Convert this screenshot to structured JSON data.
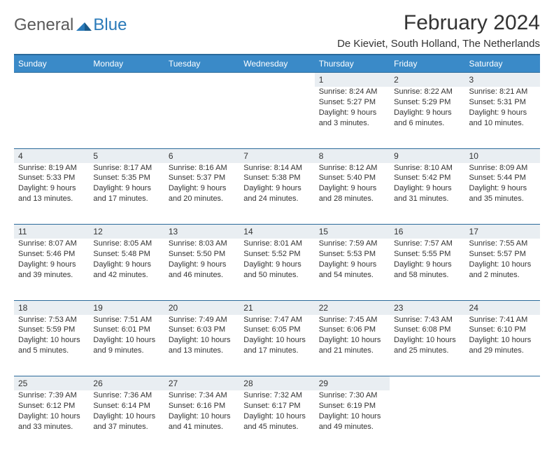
{
  "logo": {
    "part1": "General",
    "part2": "Blue"
  },
  "title": "February 2024",
  "location": "De Kieviet, South Holland, The Netherlands",
  "colors": {
    "header_bg": "#3a8ac8",
    "header_border": "#2a6a9a",
    "daynum_bg": "#e9eef2",
    "text": "#333333",
    "logo_gray": "#5a5a5a",
    "logo_blue": "#2a7ab9",
    "page_bg": "#ffffff"
  },
  "typography": {
    "title_fontsize": 30,
    "location_fontsize": 15,
    "dayheader_fontsize": 12,
    "daynum_fontsize": 12,
    "cell_fontsize": 11,
    "font_family": "Arial"
  },
  "day_headers": [
    "Sunday",
    "Monday",
    "Tuesday",
    "Wednesday",
    "Thursday",
    "Friday",
    "Saturday"
  ],
  "weeks": [
    [
      null,
      null,
      null,
      null,
      {
        "n": "1",
        "sr": "Sunrise: 8:24 AM",
        "ss": "Sunset: 5:27 PM",
        "dl1": "Daylight: 9 hours",
        "dl2": "and 3 minutes."
      },
      {
        "n": "2",
        "sr": "Sunrise: 8:22 AM",
        "ss": "Sunset: 5:29 PM",
        "dl1": "Daylight: 9 hours",
        "dl2": "and 6 minutes."
      },
      {
        "n": "3",
        "sr": "Sunrise: 8:21 AM",
        "ss": "Sunset: 5:31 PM",
        "dl1": "Daylight: 9 hours",
        "dl2": "and 10 minutes."
      }
    ],
    [
      {
        "n": "4",
        "sr": "Sunrise: 8:19 AM",
        "ss": "Sunset: 5:33 PM",
        "dl1": "Daylight: 9 hours",
        "dl2": "and 13 minutes."
      },
      {
        "n": "5",
        "sr": "Sunrise: 8:17 AM",
        "ss": "Sunset: 5:35 PM",
        "dl1": "Daylight: 9 hours",
        "dl2": "and 17 minutes."
      },
      {
        "n": "6",
        "sr": "Sunrise: 8:16 AM",
        "ss": "Sunset: 5:37 PM",
        "dl1": "Daylight: 9 hours",
        "dl2": "and 20 minutes."
      },
      {
        "n": "7",
        "sr": "Sunrise: 8:14 AM",
        "ss": "Sunset: 5:38 PM",
        "dl1": "Daylight: 9 hours",
        "dl2": "and 24 minutes."
      },
      {
        "n": "8",
        "sr": "Sunrise: 8:12 AM",
        "ss": "Sunset: 5:40 PM",
        "dl1": "Daylight: 9 hours",
        "dl2": "and 28 minutes."
      },
      {
        "n": "9",
        "sr": "Sunrise: 8:10 AM",
        "ss": "Sunset: 5:42 PM",
        "dl1": "Daylight: 9 hours",
        "dl2": "and 31 minutes."
      },
      {
        "n": "10",
        "sr": "Sunrise: 8:09 AM",
        "ss": "Sunset: 5:44 PM",
        "dl1": "Daylight: 9 hours",
        "dl2": "and 35 minutes."
      }
    ],
    [
      {
        "n": "11",
        "sr": "Sunrise: 8:07 AM",
        "ss": "Sunset: 5:46 PM",
        "dl1": "Daylight: 9 hours",
        "dl2": "and 39 minutes."
      },
      {
        "n": "12",
        "sr": "Sunrise: 8:05 AM",
        "ss": "Sunset: 5:48 PM",
        "dl1": "Daylight: 9 hours",
        "dl2": "and 42 minutes."
      },
      {
        "n": "13",
        "sr": "Sunrise: 8:03 AM",
        "ss": "Sunset: 5:50 PM",
        "dl1": "Daylight: 9 hours",
        "dl2": "and 46 minutes."
      },
      {
        "n": "14",
        "sr": "Sunrise: 8:01 AM",
        "ss": "Sunset: 5:52 PM",
        "dl1": "Daylight: 9 hours",
        "dl2": "and 50 minutes."
      },
      {
        "n": "15",
        "sr": "Sunrise: 7:59 AM",
        "ss": "Sunset: 5:53 PM",
        "dl1": "Daylight: 9 hours",
        "dl2": "and 54 minutes."
      },
      {
        "n": "16",
        "sr": "Sunrise: 7:57 AM",
        "ss": "Sunset: 5:55 PM",
        "dl1": "Daylight: 9 hours",
        "dl2": "and 58 minutes."
      },
      {
        "n": "17",
        "sr": "Sunrise: 7:55 AM",
        "ss": "Sunset: 5:57 PM",
        "dl1": "Daylight: 10 hours",
        "dl2": "and 2 minutes."
      }
    ],
    [
      {
        "n": "18",
        "sr": "Sunrise: 7:53 AM",
        "ss": "Sunset: 5:59 PM",
        "dl1": "Daylight: 10 hours",
        "dl2": "and 5 minutes."
      },
      {
        "n": "19",
        "sr": "Sunrise: 7:51 AM",
        "ss": "Sunset: 6:01 PM",
        "dl1": "Daylight: 10 hours",
        "dl2": "and 9 minutes."
      },
      {
        "n": "20",
        "sr": "Sunrise: 7:49 AM",
        "ss": "Sunset: 6:03 PM",
        "dl1": "Daylight: 10 hours",
        "dl2": "and 13 minutes."
      },
      {
        "n": "21",
        "sr": "Sunrise: 7:47 AM",
        "ss": "Sunset: 6:05 PM",
        "dl1": "Daylight: 10 hours",
        "dl2": "and 17 minutes."
      },
      {
        "n": "22",
        "sr": "Sunrise: 7:45 AM",
        "ss": "Sunset: 6:06 PM",
        "dl1": "Daylight: 10 hours",
        "dl2": "and 21 minutes."
      },
      {
        "n": "23",
        "sr": "Sunrise: 7:43 AM",
        "ss": "Sunset: 6:08 PM",
        "dl1": "Daylight: 10 hours",
        "dl2": "and 25 minutes."
      },
      {
        "n": "24",
        "sr": "Sunrise: 7:41 AM",
        "ss": "Sunset: 6:10 PM",
        "dl1": "Daylight: 10 hours",
        "dl2": "and 29 minutes."
      }
    ],
    [
      {
        "n": "25",
        "sr": "Sunrise: 7:39 AM",
        "ss": "Sunset: 6:12 PM",
        "dl1": "Daylight: 10 hours",
        "dl2": "and 33 minutes."
      },
      {
        "n": "26",
        "sr": "Sunrise: 7:36 AM",
        "ss": "Sunset: 6:14 PM",
        "dl1": "Daylight: 10 hours",
        "dl2": "and 37 minutes."
      },
      {
        "n": "27",
        "sr": "Sunrise: 7:34 AM",
        "ss": "Sunset: 6:16 PM",
        "dl1": "Daylight: 10 hours",
        "dl2": "and 41 minutes."
      },
      {
        "n": "28",
        "sr": "Sunrise: 7:32 AM",
        "ss": "Sunset: 6:17 PM",
        "dl1": "Daylight: 10 hours",
        "dl2": "and 45 minutes."
      },
      {
        "n": "29",
        "sr": "Sunrise: 7:30 AM",
        "ss": "Sunset: 6:19 PM",
        "dl1": "Daylight: 10 hours",
        "dl2": "and 49 minutes."
      },
      null,
      null
    ]
  ]
}
